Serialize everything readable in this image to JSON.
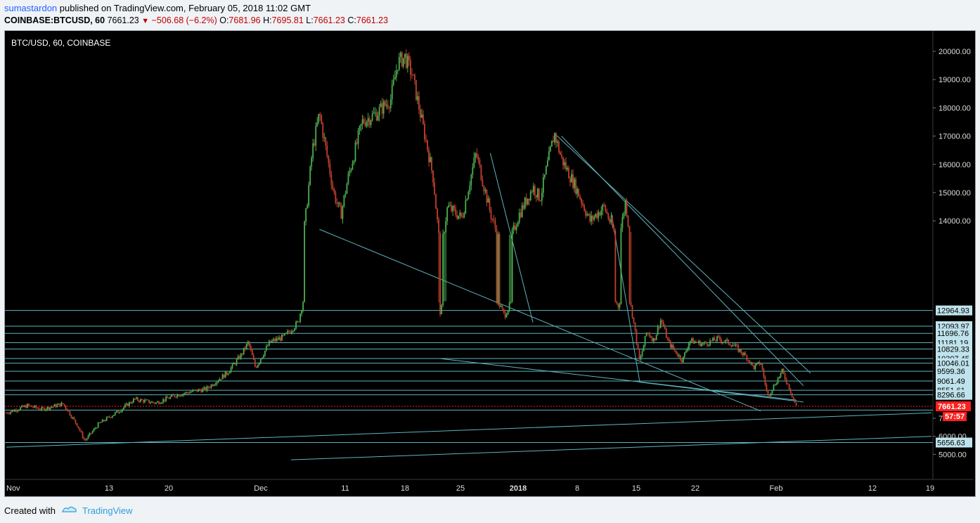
{
  "header": {
    "author": "sumastardon",
    "published_text": "published on TradingView.com, February 05, 2018 11:02 GMT",
    "symbol": "COINBASE:BTCUSD, 60",
    "last": "7661.23",
    "change": "−506.68 (−6.2%)",
    "open_label": "O:",
    "open": "7681.96",
    "high_label": "H:",
    "high": "7695.81",
    "low_label": "L:",
    "low": "7661.23",
    "close_label": "C:",
    "close": "7661.23"
  },
  "footer": {
    "created_with": "Created with",
    "brand": "TradingView"
  },
  "colors": {
    "background": "#000000",
    "line": "#5fb3bd",
    "up": "#4caf50",
    "down": "#c2402d",
    "price_tag": "#ff1f1f",
    "level_tag": "#bfe3ec"
  },
  "chart_data": {
    "type": "candlestick",
    "title": "BTC/USD, 60, COINBASE",
    "x_ticks": [
      "Nov",
      "13",
      "20",
      "Dec",
      "11",
      "18",
      "25",
      "2018",
      "8",
      "15",
      "22",
      "Feb",
      "12",
      "19"
    ],
    "y_ticks": [
      "20000.00",
      "19000.00",
      "18000.00",
      "17000.00",
      "16000.00",
      "15000.00",
      "14000.00",
      "7000.00",
      "6000.00",
      "5000.00"
    ],
    "ylim": [
      4700,
      20400
    ],
    "current_price": "7661.23",
    "countdown": "57:57",
    "horizontal_levels": [
      {
        "value": 12964.93,
        "label": "12964.93"
      },
      {
        "value": 12093.97,
        "label": "12093.97"
      },
      {
        "value": 11696.76,
        "label": "11696.76"
      },
      {
        "value": 11181.19,
        "label": "11181.19"
      },
      {
        "value": 10829.33,
        "label": "10829.33"
      },
      {
        "value": 10307.45,
        "label": "10307.45"
      },
      {
        "value": 10046.01,
        "label": "10046.01"
      },
      {
        "value": 9599.36,
        "label": "9599.36"
      },
      {
        "value": 9061.49,
        "label": "9061.49"
      },
      {
        "value": 8551.61,
        "label": "8551.61"
      },
      {
        "value": 8296.66,
        "label": "8296.66"
      },
      {
        "value": 7450,
        "label": ""
      },
      {
        "value": 5656.63,
        "label": "5656.63"
      }
    ],
    "price_path": [
      [
        0,
        7300
      ],
      [
        3,
        7700
      ],
      [
        5,
        7500
      ],
      [
        8,
        7800
      ],
      [
        10,
        6600
      ],
      [
        11,
        5750
      ],
      [
        13,
        6700
      ],
      [
        16,
        7450
      ],
      [
        18,
        8050
      ],
      [
        21,
        7850
      ],
      [
        24,
        8300
      ],
      [
        27,
        8550
      ],
      [
        28,
        8600
      ],
      [
        31,
        9500
      ],
      [
        33,
        10500
      ],
      [
        34,
        11200
      ],
      [
        35,
        9800
      ],
      [
        37,
        11200
      ],
      [
        39,
        11500
      ],
      [
        41,
        12300
      ],
      [
        42,
        14000
      ],
      [
        43,
        16500
      ],
      [
        44,
        17800
      ],
      [
        46,
        15000
      ],
      [
        47,
        14200
      ],
      [
        48,
        15500
      ],
      [
        50,
        17500
      ],
      [
        52,
        17800
      ],
      [
        54,
        18300
      ],
      [
        55,
        19600
      ],
      [
        56,
        19800
      ],
      [
        57,
        19200
      ],
      [
        59,
        16800
      ],
      [
        60,
        15500
      ],
      [
        61,
        12800
      ],
      [
        62,
        14500
      ],
      [
        64,
        14100
      ],
      [
        66,
        16400
      ],
      [
        68,
        14300
      ],
      [
        70,
        12700
      ],
      [
        72,
        14200
      ],
      [
        74,
        15200
      ],
      [
        75,
        14800
      ],
      [
        77,
        17100
      ],
      [
        78,
        16200
      ],
      [
        80,
        15200
      ],
      [
        82,
        14000
      ],
      [
        84,
        14500
      ],
      [
        86,
        13200
      ],
      [
        87,
        14700
      ],
      [
        88,
        12700
      ],
      [
        89,
        10100
      ],
      [
        90,
        11800
      ],
      [
        91,
        11300
      ],
      [
        92,
        12500
      ],
      [
        93,
        11200
      ],
      [
        95,
        10200
      ],
      [
        96,
        11300
      ],
      [
        98,
        11100
      ],
      [
        100,
        11400
      ],
      [
        102,
        11100
      ],
      [
        104,
        10400
      ],
      [
        105,
        9800
      ],
      [
        106,
        10100
      ],
      [
        107,
        8200
      ],
      [
        108,
        8900
      ],
      [
        109,
        9600
      ],
      [
        110,
        8700
      ],
      [
        111,
        7661
      ]
    ],
    "trendlines": [
      [
        [
          44,
          13700
        ],
        [
          106,
          7400
        ]
      ],
      [
        [
          61,
          10300
        ],
        [
          111,
          8000
        ]
      ],
      [
        [
          89,
          9000
        ],
        [
          112,
          7900
        ]
      ],
      [
        [
          77,
          17100
        ],
        [
          113,
          9500
        ]
      ],
      [
        [
          78,
          17000
        ],
        [
          112,
          8800
        ]
      ],
      [
        [
          0,
          5400
        ],
        [
          130,
          7300
        ]
      ],
      [
        [
          40,
          4700
        ],
        [
          130,
          6000
        ]
      ],
      [
        [
          68,
          16400
        ],
        [
          74,
          12300
        ]
      ],
      [
        [
          85,
          14300
        ],
        [
          89,
          9000
        ]
      ]
    ]
  }
}
